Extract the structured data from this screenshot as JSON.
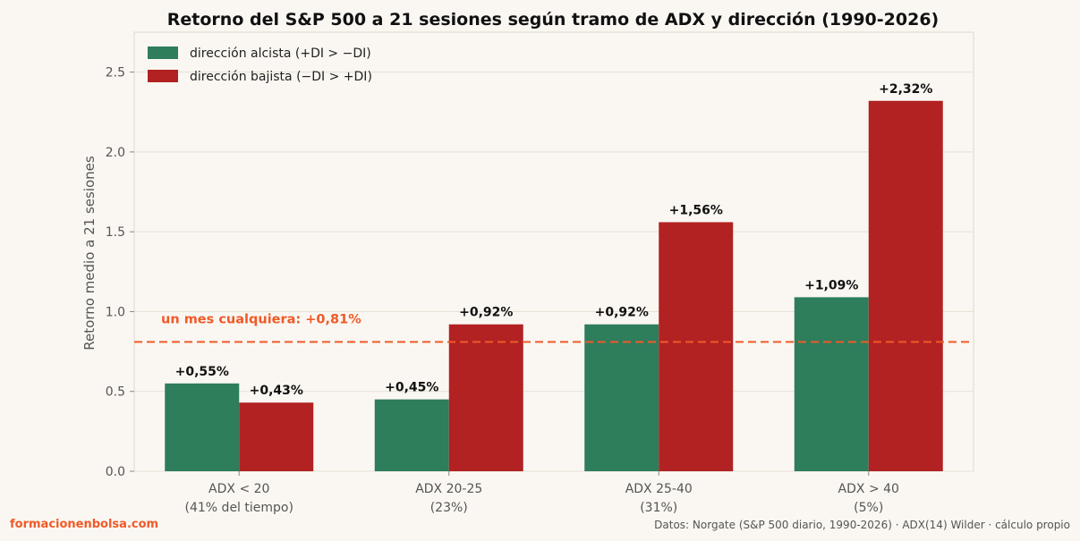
{
  "chart_data": {
    "type": "bar",
    "title": "Retorno del S&P 500 a 21 sesiones según tramo de ADX y dirección (1990-2026)",
    "ylabel": "Retorno medio a 21 sesiones",
    "xlabel": "",
    "ylim": [
      0,
      2.75
    ],
    "yticks": [
      "0.0",
      "0.5",
      "1.0",
      "1.5",
      "2.0",
      "2.5"
    ],
    "grid": "horizontal",
    "legend_position": "top-left",
    "categories": [
      [
        "ADX < 20",
        "(41% del tiempo)"
      ],
      [
        "ADX 20-25",
        "(23%)"
      ],
      [
        "ADX 25-40",
        "(31%)"
      ],
      [
        "ADX > 40",
        "(5%)"
      ]
    ],
    "series": [
      {
        "name": "dirección alcista (+DI > −DI)",
        "color": "#2e7d5b",
        "values": [
          0.55,
          0.45,
          0.92,
          1.09
        ],
        "labels": [
          "+0,55%",
          "+0,45%",
          "+0,92%",
          "+1,09%"
        ]
      },
      {
        "name": "dirección bajista (−DI > +DI)",
        "color": "#b22222",
        "values": [
          0.43,
          0.92,
          1.56,
          2.32
        ],
        "labels": [
          "+0,43%",
          "+0,92%",
          "+1,56%",
          "+2,32%"
        ]
      }
    ],
    "reference_line": {
      "value": 0.81,
      "label": "un mes cualquiera: +0,81%",
      "color": "#f05a28"
    }
  },
  "footer": {
    "brand": "formacionenbolsa.com",
    "brand_color": "#f05a28",
    "source": "Datos: Norgate (S&P 500 diario, 1990-2026) · ADX(14) Wilder · cálculo propio"
  }
}
